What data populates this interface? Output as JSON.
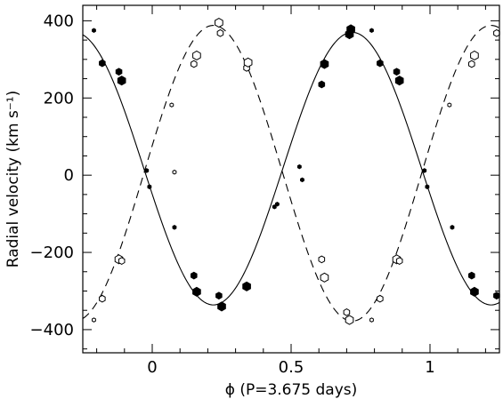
{
  "chart_data": {
    "type": "scatter",
    "xlabel": "ϕ (P=3.675 days)",
    "ylabel": "Radial velocity (km s⁻¹)",
    "xlim": [
      -0.25,
      1.25
    ],
    "ylim": [
      -460,
      440
    ],
    "x_ticks": [
      0,
      0.5,
      1
    ],
    "x_tick_labels": [
      "0",
      "0.5",
      "1"
    ],
    "y_ticks": [
      -400,
      -200,
      0,
      200,
      400
    ],
    "y_tick_labels": [
      "−400",
      "−200",
      "0",
      "200",
      "400"
    ],
    "grid": false,
    "legend": "none",
    "series": [
      {
        "style": "filled",
        "line": "solid",
        "curve": {
          "gamma": 17,
          "amplitude": 353,
          "phase_of_max": 0.72
        },
        "points": [
          {
            "x": -0.21,
            "y": 375,
            "size": "s"
          },
          {
            "x": -0.18,
            "y": 290,
            "size": "m"
          },
          {
            "x": -0.12,
            "y": 268,
            "size": "m"
          },
          {
            "x": -0.11,
            "y": 245,
            "size": "l"
          },
          {
            "x": -0.02,
            "y": 12,
            "size": "s"
          },
          {
            "x": -0.01,
            "y": -30,
            "size": "s"
          },
          {
            "x": 0.08,
            "y": -135,
            "size": "s"
          },
          {
            "x": 0.15,
            "y": -260,
            "size": "m"
          },
          {
            "x": 0.16,
            "y": -302,
            "size": "l"
          },
          {
            "x": 0.24,
            "y": -312,
            "size": "m"
          },
          {
            "x": 0.25,
            "y": -340,
            "size": "l"
          },
          {
            "x": 0.34,
            "y": -288,
            "size": "l"
          },
          {
            "x": 0.44,
            "y": -82,
            "size": "s"
          },
          {
            "x": 0.45,
            "y": -75,
            "size": "s"
          },
          {
            "x": 0.53,
            "y": 22,
            "size": "s"
          },
          {
            "x": 0.54,
            "y": -12,
            "size": "s"
          },
          {
            "x": 0.61,
            "y": 235,
            "size": "m"
          },
          {
            "x": 0.62,
            "y": 288,
            "size": "l"
          },
          {
            "x": 0.71,
            "y": 365,
            "size": "l"
          },
          {
            "x": 0.715,
            "y": 378,
            "size": "l"
          },
          {
            "x": 0.79,
            "y": 375,
            "size": "s"
          },
          {
            "x": 0.82,
            "y": 290,
            "size": "m"
          },
          {
            "x": 0.88,
            "y": 268,
            "size": "m"
          },
          {
            "x": 0.89,
            "y": 245,
            "size": "l"
          },
          {
            "x": 0.98,
            "y": 12,
            "size": "s"
          },
          {
            "x": 0.99,
            "y": -30,
            "size": "s"
          },
          {
            "x": 1.08,
            "y": -135,
            "size": "s"
          },
          {
            "x": 1.15,
            "y": -260,
            "size": "m"
          },
          {
            "x": 1.16,
            "y": -302,
            "size": "l"
          },
          {
            "x": 1.24,
            "y": -312,
            "size": "m"
          }
        ]
      },
      {
        "style": "open",
        "line": "dashed",
        "curve": {
          "gamma": 5,
          "amplitude": 383,
          "phase_of_max": 0.22
        },
        "points": [
          {
            "x": -0.21,
            "y": -375,
            "size": "s"
          },
          {
            "x": -0.18,
            "y": -320,
            "size": "m"
          },
          {
            "x": -0.12,
            "y": -218,
            "size": "l"
          },
          {
            "x": -0.11,
            "y": -222,
            "size": "m"
          },
          {
            "x": 0.08,
            "y": 8,
            "size": "s"
          },
          {
            "x": 0.07,
            "y": 182,
            "size": "s"
          },
          {
            "x": 0.15,
            "y": 288,
            "size": "m"
          },
          {
            "x": 0.16,
            "y": 310,
            "size": "l"
          },
          {
            "x": 0.24,
            "y": 395,
            "size": "l"
          },
          {
            "x": 0.245,
            "y": 368,
            "size": "m"
          },
          {
            "x": 0.34,
            "y": 278,
            "size": "m"
          },
          {
            "x": 0.345,
            "y": 292,
            "size": "l"
          },
          {
            "x": 0.61,
            "y": -218,
            "size": "m"
          },
          {
            "x": 0.62,
            "y": -265,
            "size": "l"
          },
          {
            "x": 0.7,
            "y": -355,
            "size": "m"
          },
          {
            "x": 0.71,
            "y": -375,
            "size": "l"
          },
          {
            "x": 0.79,
            "y": -375,
            "size": "s"
          },
          {
            "x": 0.82,
            "y": -320,
            "size": "m"
          },
          {
            "x": 0.88,
            "y": -218,
            "size": "l"
          },
          {
            "x": 0.89,
            "y": -222,
            "size": "m"
          },
          {
            "x": 1.07,
            "y": 182,
            "size": "s"
          },
          {
            "x": 1.15,
            "y": 288,
            "size": "m"
          },
          {
            "x": 1.16,
            "y": 310,
            "size": "l"
          },
          {
            "x": 1.24,
            "y": 368,
            "size": "m"
          }
        ]
      }
    ]
  }
}
